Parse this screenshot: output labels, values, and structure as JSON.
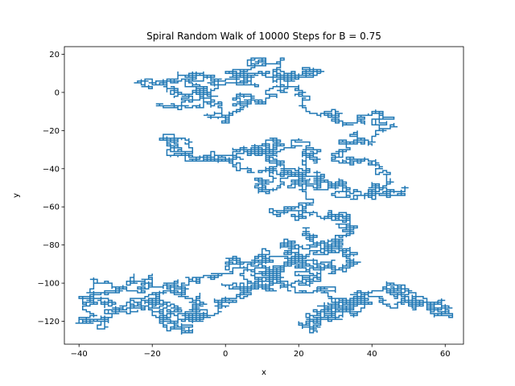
{
  "chart_data": {
    "type": "line",
    "title": "Spiral Random Walk of 10000 Steps for B = 0.75",
    "xlabel": "x",
    "ylabel": "y",
    "xlim": [
      -44,
      65
    ],
    "ylim": [
      -132,
      24
    ],
    "xticks": [
      -40,
      -20,
      0,
      20,
      40,
      60
    ],
    "yticks": [
      -120,
      -100,
      -80,
      -60,
      -40,
      -20,
      0,
      20
    ],
    "grid": false,
    "line_color": "#1f77b4",
    "series": [
      {
        "steps": 10000,
        "waypoints": [
          [
            -20,
            3
          ],
          [
            -15,
            5
          ],
          [
            -8,
            10
          ],
          [
            -3,
            6
          ],
          [
            2,
            12
          ],
          [
            8,
            15
          ],
          [
            15,
            12
          ],
          [
            20,
            8
          ],
          [
            25,
            10
          ],
          [
            18,
            0
          ],
          [
            10,
            -5
          ],
          [
            5,
            -10
          ],
          [
            0,
            -15
          ],
          [
            -5,
            -5
          ],
          [
            -10,
            0
          ],
          [
            -15,
            3
          ],
          [
            -10,
            -8
          ],
          [
            -5,
            -3
          ],
          [
            0,
            2
          ],
          [
            5,
            8
          ],
          [
            10,
            3
          ],
          [
            15,
            -5
          ],
          [
            20,
            -10
          ],
          [
            30,
            -12
          ],
          [
            38,
            -15
          ],
          [
            42,
            -18
          ],
          [
            35,
            -25
          ],
          [
            30,
            -30
          ],
          [
            35,
            -35
          ],
          [
            40,
            -42
          ],
          [
            42,
            -50
          ],
          [
            48,
            -52
          ],
          [
            40,
            -54
          ],
          [
            32,
            -52
          ],
          [
            25,
            -48
          ],
          [
            20,
            -42
          ],
          [
            12,
            -38
          ],
          [
            8,
            -32
          ],
          [
            2,
            -30
          ],
          [
            -5,
            -35
          ],
          [
            -10,
            -32
          ],
          [
            -15,
            -30
          ],
          [
            -10,
            -34
          ],
          [
            -3,
            -36
          ],
          [
            5,
            -33
          ],
          [
            10,
            -28
          ],
          [
            15,
            -25
          ],
          [
            20,
            -30
          ],
          [
            25,
            -35
          ],
          [
            22,
            -42
          ],
          [
            16,
            -45
          ],
          [
            10,
            -48
          ],
          [
            10,
            -42
          ],
          [
            15,
            -40
          ],
          [
            20,
            -48
          ],
          [
            25,
            -55
          ],
          [
            18,
            -58
          ],
          [
            15,
            -62
          ],
          [
            20,
            -65
          ],
          [
            28,
            -62
          ],
          [
            32,
            -66
          ],
          [
            35,
            -70
          ],
          [
            30,
            -78
          ],
          [
            25,
            -84
          ],
          [
            20,
            -90
          ],
          [
            25,
            -95
          ],
          [
            22,
            -100
          ],
          [
            15,
            -98
          ],
          [
            10,
            -100
          ],
          [
            10,
            -95
          ],
          [
            15,
            -90
          ],
          [
            20,
            -85
          ],
          [
            18,
            -80
          ],
          [
            22,
            -75
          ],
          [
            28,
            -80
          ],
          [
            32,
            -85
          ],
          [
            35,
            -90
          ],
          [
            25,
            -92
          ],
          [
            20,
            -88
          ],
          [
            10,
            -88
          ],
          [
            5,
            -92
          ],
          [
            0,
            -88
          ],
          [
            -3,
            -95
          ],
          [
            -10,
            -98
          ],
          [
            -15,
            -102
          ],
          [
            -20,
            -100
          ],
          [
            -25,
            -104
          ],
          [
            -30,
            -106
          ],
          [
            -35,
            -110
          ],
          [
            -38,
            -115
          ],
          [
            -39,
            -120
          ],
          [
            -33,
            -118
          ],
          [
            -28,
            -116
          ],
          [
            -25,
            -112
          ],
          [
            -20,
            -110
          ],
          [
            -15,
            -115
          ],
          [
            -10,
            -118
          ],
          [
            -5,
            -114
          ],
          [
            -8,
            -108
          ],
          [
            -15,
            -105
          ],
          [
            -20,
            -110
          ],
          [
            -18,
            -118
          ],
          [
            -14,
            -123
          ],
          [
            -10,
            -120
          ],
          [
            -5,
            -117
          ],
          [
            -2,
            -112
          ],
          [
            5,
            -108
          ],
          [
            2,
            -104
          ],
          [
            8,
            -102
          ],
          [
            15,
            -100
          ],
          [
            20,
            -104
          ],
          [
            25,
            -108
          ],
          [
            30,
            -112
          ],
          [
            35,
            -110
          ],
          [
            40,
            -106
          ],
          [
            45,
            -102
          ],
          [
            48,
            -106
          ],
          [
            52,
            -110
          ],
          [
            56,
            -112
          ],
          [
            60,
            -113
          ],
          [
            54,
            -111
          ],
          [
            48,
            -108
          ],
          [
            42,
            -110
          ],
          [
            36,
            -114
          ],
          [
            30,
            -116
          ],
          [
            25,
            -118
          ],
          [
            20,
            -121
          ],
          [
            22,
            -116
          ],
          [
            28,
            -112
          ],
          [
            33,
            -108
          ]
        ]
      }
    ]
  }
}
